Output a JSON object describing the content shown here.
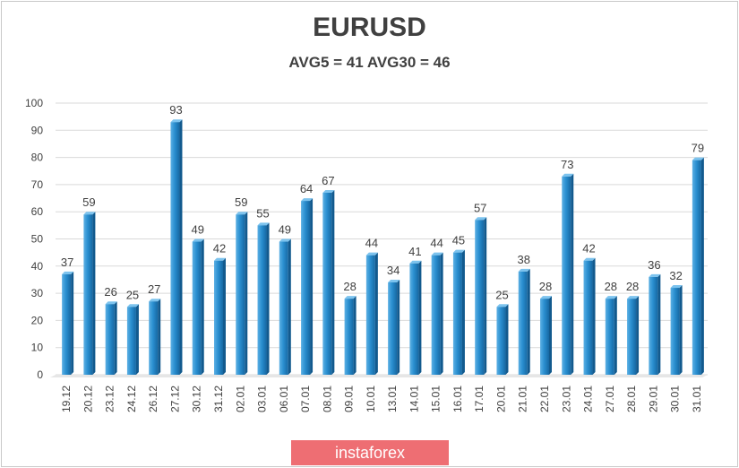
{
  "chart_data": {
    "type": "bar",
    "title": "EURUSD",
    "subtitle": "AVG5 = 41 AVG30 = 46",
    "categories": [
      "19.12",
      "20.12",
      "23.12",
      "24.12",
      "26.12",
      "27.12",
      "30.12",
      "31.12",
      "02.01",
      "03.01",
      "06.01",
      "07.01",
      "08.01",
      "09.01",
      "10.01",
      "13.01",
      "14.01",
      "15.01",
      "16.01",
      "17.01",
      "20.01",
      "21.01",
      "22.01",
      "23.01",
      "24.01",
      "27.01",
      "28.01",
      "29.01",
      "30.01",
      "31.01"
    ],
    "values": [
      37,
      59,
      26,
      25,
      27,
      93,
      49,
      42,
      59,
      55,
      49,
      64,
      67,
      28,
      44,
      34,
      41,
      44,
      45,
      57,
      25,
      38,
      28,
      73,
      42,
      28,
      28,
      36,
      32,
      79
    ],
    "ylim": [
      0,
      100
    ],
    "yticks": [
      0,
      10,
      20,
      30,
      40,
      50,
      60,
      70,
      80,
      90,
      100
    ],
    "xlabel": "",
    "ylabel": "",
    "grid": true,
    "bar_color": "#2a8fd0",
    "data_labels": true
  },
  "watermark": {
    "text": "instaforex",
    "color": "#ee6e73"
  }
}
